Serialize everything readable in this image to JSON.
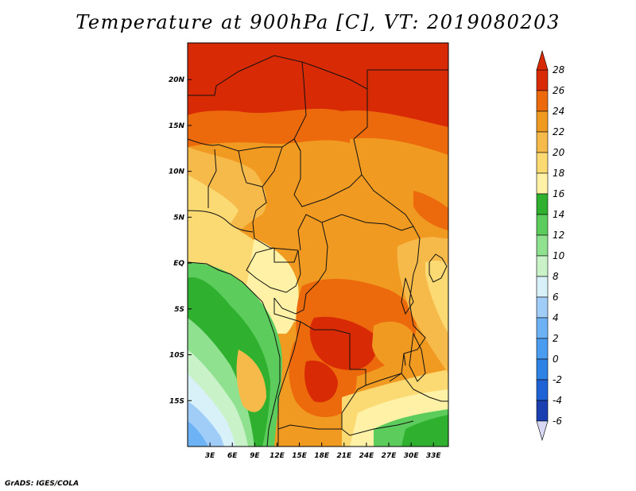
{
  "title": "Temperature at 900hPa [C], VT: 2019080203",
  "credit": "GrADS: IGES/COLA",
  "map": {
    "lon_range": [
      0,
      35
    ],
    "lat_range": [
      -20,
      24
    ],
    "lon_ticks": [
      {
        "value": 3,
        "label": "3E"
      },
      {
        "value": 6,
        "label": "6E"
      },
      {
        "value": 9,
        "label": "9E"
      },
      {
        "value": 12,
        "label": "12E"
      },
      {
        "value": 15,
        "label": "15E"
      },
      {
        "value": 18,
        "label": "18E"
      },
      {
        "value": 21,
        "label": "21E"
      },
      {
        "value": 24,
        "label": "24E"
      },
      {
        "value": 27,
        "label": "27E"
      },
      {
        "value": 30,
        "label": "30E"
      },
      {
        "value": 33,
        "label": "33E"
      }
    ],
    "lat_ticks": [
      {
        "value": 20,
        "label": "20N"
      },
      {
        "value": 15,
        "label": "15N"
      },
      {
        "value": 10,
        "label": "10N"
      },
      {
        "value": 5,
        "label": "5N"
      },
      {
        "value": 0,
        "label": "EQ"
      },
      {
        "value": -5,
        "label": "5S"
      },
      {
        "value": -10,
        "label": "10S"
      },
      {
        "value": -15,
        "label": "15S"
      }
    ]
  },
  "colorbar": {
    "levels": [
      -6,
      -4,
      -2,
      0,
      2,
      4,
      6,
      8,
      10,
      12,
      14,
      16,
      18,
      20,
      22,
      24,
      26,
      28
    ],
    "labels": [
      "28",
      "26",
      "24",
      "22",
      "20",
      "18",
      "16",
      "14",
      "12",
      "10",
      "8",
      "6",
      "4",
      "2",
      "0",
      "-2",
      "-4",
      "-6"
    ],
    "colors": [
      "#1a1a7a",
      "#1a3fb0",
      "#1f62d6",
      "#2d82e6",
      "#4a9cf0",
      "#6db2f5",
      "#9fcdf8",
      "#d8f0f8",
      "#c9f2c9",
      "#8fe08f",
      "#5ccd5c",
      "#2fb02f",
      "#fff2a6",
      "#fbd973",
      "#f6ba4a",
      "#f09a22",
      "#ec6a0c",
      "#d92a06"
    ],
    "under_color": "#d8d8f4",
    "over_color": "#d92a06"
  }
}
